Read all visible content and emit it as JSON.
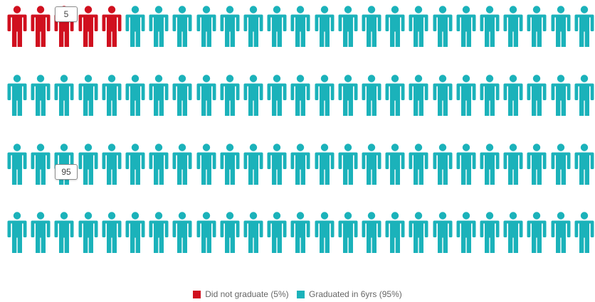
{
  "chart_data": {
    "type": "pictograph",
    "total_icons": 100,
    "icons_per_row": 25,
    "series": [
      {
        "name": "Did not graduate (5%)",
        "value": 5,
        "color": "#d0101f"
      },
      {
        "name": "Graduated in 6yrs (95%)",
        "value": 95,
        "color": "#1bb2ba"
      }
    ],
    "data_labels": [
      "5",
      "95"
    ]
  }
}
